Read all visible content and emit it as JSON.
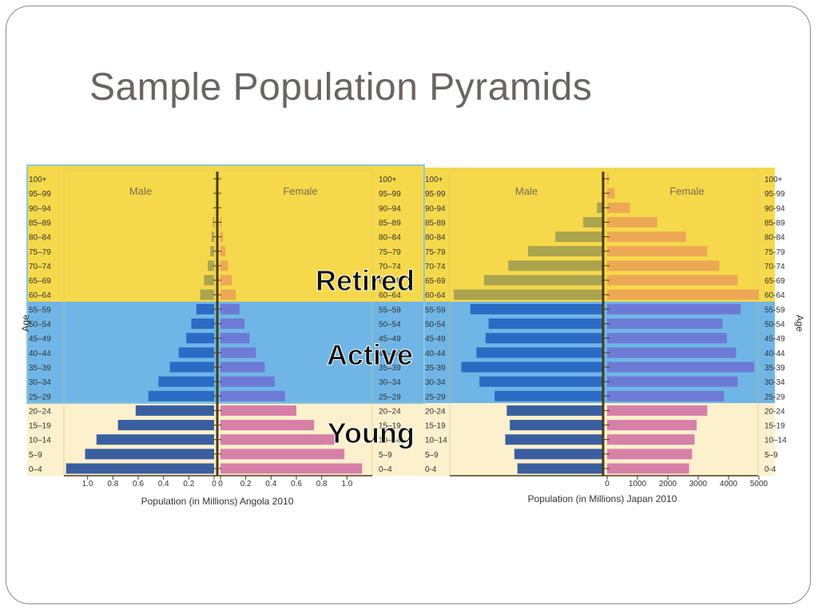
{
  "slide": {
    "title": "Sample Population Pyramids"
  },
  "band_labels": {
    "retired": "Retired",
    "active": "Active",
    "young": "Young"
  },
  "colors": {
    "retired_band": "#f6d94a",
    "active_band": "#6fb6e6",
    "young_band": "#fdf0cc",
    "male_retired": "#aba44e",
    "male_active": "#2a6bc4",
    "male_young": "#3a5fa0",
    "female_retired": "#eda856",
    "female_active": "#6d7ad6",
    "female_young": "#d680a8"
  },
  "chart_data": [
    {
      "type": "bar",
      "subtype": "population-pyramid",
      "title": "",
      "xlabel": "Population (in Millions) Angola 2010",
      "ylabel": "Age",
      "male_label": "Male",
      "female_label": "Female",
      "categories": [
        "0–4",
        "5–9",
        "10–14",
        "15–19",
        "20–24",
        "25–29",
        "30–34",
        "35–39",
        "40–44",
        "45–49",
        "50–54",
        "55–59",
        "60–64",
        "65–69",
        "70–74",
        "75–79",
        "80–84",
        "85–89",
        "90–94",
        "95–99",
        "100+"
      ],
      "series": [
        {
          "name": "Male",
          "values": [
            1.17,
            1.02,
            0.93,
            0.76,
            0.62,
            0.52,
            0.44,
            0.35,
            0.28,
            0.22,
            0.18,
            0.14,
            0.11,
            0.08,
            0.05,
            0.03,
            0.02,
            0.01,
            0,
            0,
            0
          ]
        },
        {
          "name": "Female",
          "values": [
            1.12,
            0.98,
            0.9,
            0.74,
            0.6,
            0.51,
            0.43,
            0.35,
            0.28,
            0.23,
            0.19,
            0.15,
            0.12,
            0.09,
            0.06,
            0.04,
            0.02,
            0.01,
            0,
            0,
            0
          ]
        }
      ],
      "xticks": [
        "1.0",
        "0.8",
        "0.6",
        "0.4",
        "0.2",
        "0",
        "0",
        "0.2",
        "0.4",
        "0.6",
        "0.8",
        "1.0"
      ],
      "xlim": [
        0,
        1.2
      ]
    },
    {
      "type": "bar",
      "subtype": "population-pyramid",
      "title": "",
      "xlabel": "Population (in Millions) Japan 2010",
      "ylabel": "Age",
      "male_label": "Male",
      "female_label": "Female",
      "categories": [
        "0-4",
        "5–9",
        "10–14",
        "15-19",
        "20-24",
        "25-29",
        "30-34",
        "35-39",
        "40-44",
        "45-49",
        "50-54",
        "55-59",
        "60-64",
        "65-69",
        "70-74",
        "75-79",
        "80-84",
        "85-89",
        "90-94",
        "95-99",
        "100+"
      ],
      "series": [
        {
          "name": "Male",
          "values": [
            2850,
            2950,
            3250,
            3100,
            3200,
            3600,
            4100,
            4700,
            4200,
            3900,
            3800,
            4400,
            4950,
            3950,
            3150,
            2500,
            1600,
            680,
            230,
            60,
            10
          ]
        },
        {
          "name": "Female",
          "values": [
            2700,
            2800,
            2880,
            2950,
            3300,
            3850,
            4300,
            4850,
            4250,
            3950,
            3800,
            4400,
            5000,
            4300,
            3700,
            3300,
            2600,
            1650,
            750,
            250,
            50
          ]
        }
      ],
      "xticks": [
        "0",
        "1000",
        "2000",
        "3000",
        "4000",
        "5000"
      ],
      "xlim": [
        0,
        5000
      ]
    }
  ]
}
